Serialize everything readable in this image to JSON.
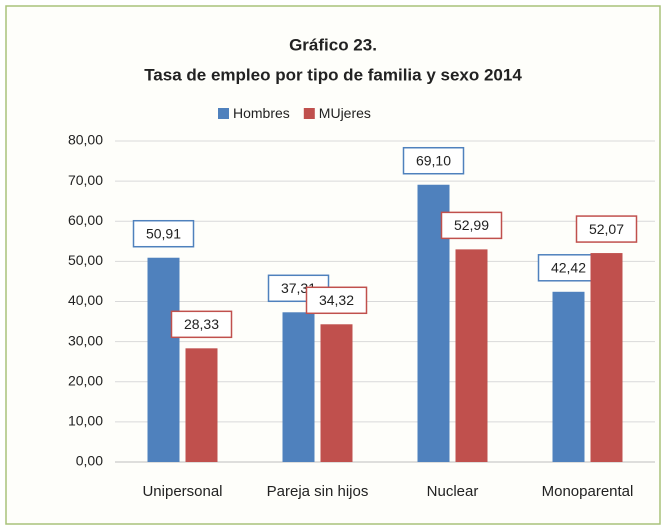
{
  "chart_data": {
    "type": "bar",
    "title": "Gráfico 23.",
    "subtitle": "Tasa de empleo por tipo de familia y sexo 2014",
    "categories": [
      "Unipersonal",
      "Pareja sin hijos",
      "Nuclear",
      "Monoparental"
    ],
    "series": [
      {
        "name": "Hombres",
        "color": "#4f81bd",
        "values": [
          50.91,
          37.31,
          69.1,
          42.42
        ],
        "value_labels": [
          "50,91",
          "37,31",
          "69,10",
          "42,42"
        ]
      },
      {
        "name": "MUjeres",
        "color": "#c0504d",
        "values": [
          28.33,
          34.32,
          52.99,
          52.07
        ],
        "value_labels": [
          "28,33",
          "34,32",
          "52,99",
          "52,07"
        ]
      }
    ],
    "ylim": [
      0,
      80
    ],
    "yticks": [
      {
        "value": 0,
        "label": "0,00"
      },
      {
        "value": 10,
        "label": "10,00"
      },
      {
        "value": 20,
        "label": "20,00"
      },
      {
        "value": 30,
        "label": "30,00"
      },
      {
        "value": 40,
        "label": "40,00"
      },
      {
        "value": 50,
        "label": "50,00"
      },
      {
        "value": 60,
        "label": "60,00"
      },
      {
        "value": 70,
        "label": "70,00"
      },
      {
        "value": 80,
        "label": "80,00"
      }
    ],
    "grid": true,
    "legend": "top"
  }
}
